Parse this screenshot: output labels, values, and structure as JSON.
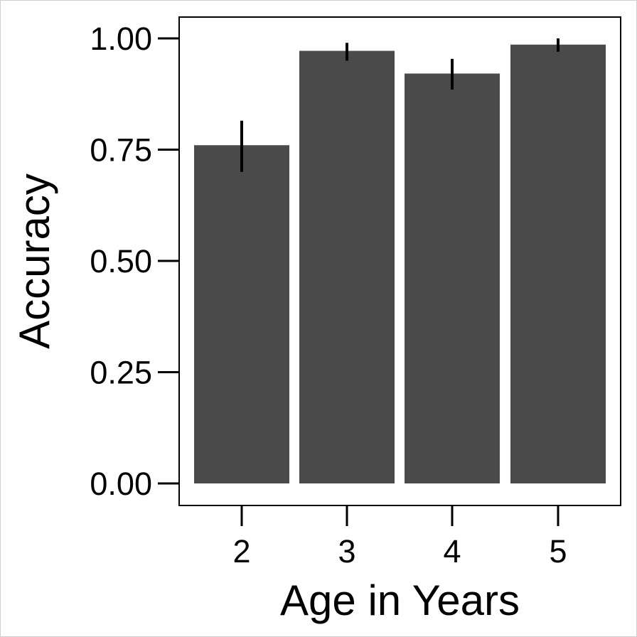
{
  "chart_data": {
    "type": "bar",
    "title": "",
    "xlabel": "Age in Years",
    "ylabel": "Accuracy",
    "categories": [
      "2",
      "3",
      "4",
      "5"
    ],
    "values": [
      0.76,
      0.972,
      0.921,
      0.986
    ],
    "error_bars": {
      "lower": [
        0.7,
        0.95,
        0.885,
        0.97
      ],
      "upper": [
        0.815,
        0.99,
        0.954,
        1.0
      ]
    },
    "ylim": [
      -0.05,
      1.05
    ],
    "y_ticks": [
      0.0,
      0.25,
      0.5,
      0.75,
      1.0
    ],
    "y_tick_labels": [
      "0.00",
      "0.25",
      "0.50",
      "0.75",
      "1.00"
    ],
    "grid": false,
    "legend": "none",
    "colors": {
      "bar": "#4a4a4a",
      "error_bar": "#000000",
      "axis": "#000000",
      "background": "#ffffff"
    }
  }
}
